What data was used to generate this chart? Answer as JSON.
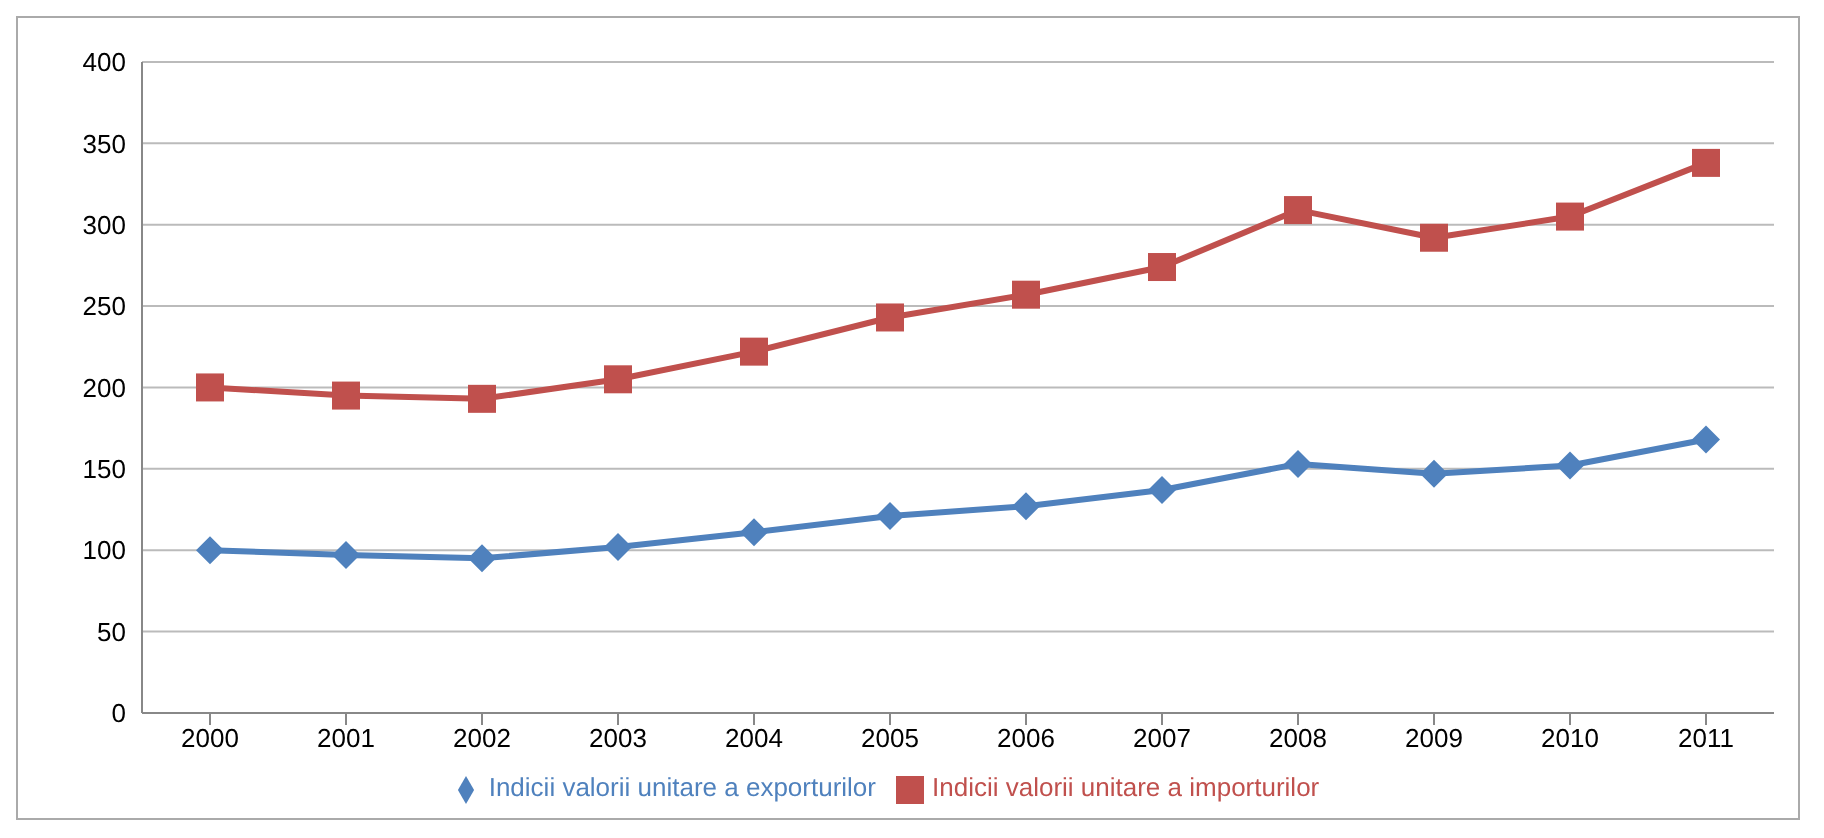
{
  "chart_data": {
    "type": "line",
    "categories": [
      "2000",
      "2001",
      "2002",
      "2003",
      "2004",
      "2005",
      "2006",
      "2007",
      "2008",
      "2009",
      "2010",
      "2011"
    ],
    "series": [
      {
        "name": "Indicii valorii unitare a exporturilor",
        "color": "#4f81bd",
        "marker": "diamond",
        "values": [
          100,
          97,
          95,
          102,
          111,
          121,
          127,
          137,
          153,
          147,
          152,
          168
        ]
      },
      {
        "name": "Indicii valorii unitare a importurilor",
        "color": "#c0504d",
        "marker": "square",
        "values": [
          200,
          195,
          193,
          205,
          222,
          243,
          257,
          274,
          309,
          292,
          305,
          338
        ]
      }
    ],
    "ylim": [
      0,
      400
    ],
    "yticks": [
      0,
      50,
      100,
      150,
      200,
      250,
      300,
      350,
      400
    ],
    "grid": "y",
    "legend": "bottom"
  }
}
